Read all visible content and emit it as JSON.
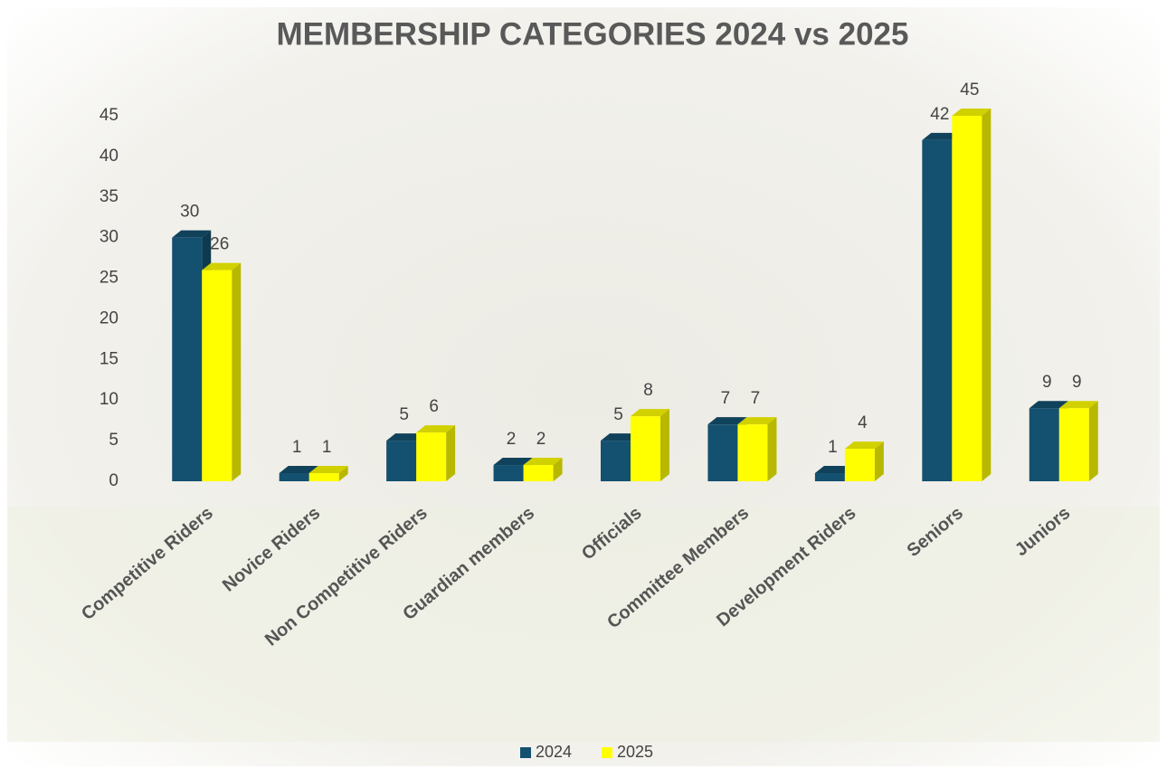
{
  "chart_data": {
    "type": "bar3d",
    "title": "MEMBERSHIP CATEGORIES 2024 vs 2025",
    "categories": [
      "Competitive Riders",
      "Novice Riders",
      "Non Competitive Riders",
      "Guardian members",
      "Officials",
      "Committee Members",
      "Development Riders",
      "Seniors",
      "Juniors"
    ],
    "series": [
      {
        "name": "2024",
        "color": "#14506f",
        "values": [
          30,
          1,
          5,
          2,
          5,
          7,
          1,
          42,
          9
        ]
      },
      {
        "name": "2025",
        "color": "#ffff00",
        "values": [
          26,
          1,
          6,
          2,
          8,
          7,
          4,
          45,
          9
        ]
      }
    ],
    "ylim": [
      0,
      45
    ],
    "yticks": [
      0,
      5,
      10,
      15,
      20,
      25,
      30,
      35,
      40,
      45
    ],
    "grid": false,
    "legend": "bottom"
  }
}
